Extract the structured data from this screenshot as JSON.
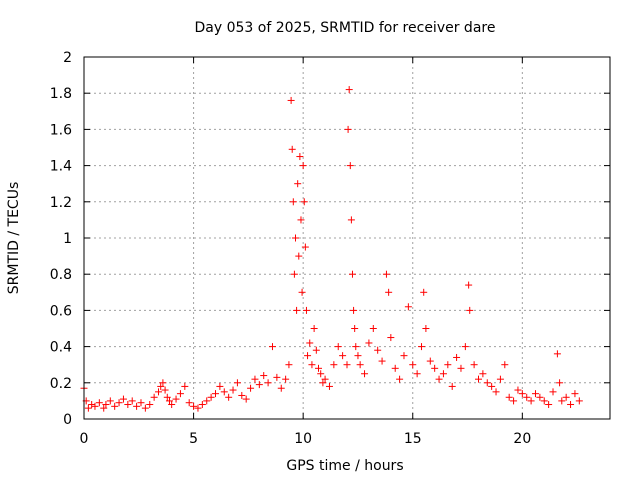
{
  "chart_data": {
    "type": "scatter",
    "title": "Day 053 of 2025, SRMTID for receiver dare",
    "xlabel": "GPS time / hours",
    "ylabel": "SRMTID / TECUs",
    "xlim": [
      0,
      24
    ],
    "ylim": [
      0,
      2
    ],
    "xticks": [
      0,
      5,
      10,
      15,
      20
    ],
    "xtick_labels": [
      "0",
      "5",
      "10",
      "15",
      "20"
    ],
    "yticks": [
      0,
      0.2,
      0.4,
      0.6,
      0.8,
      1,
      1.2,
      1.4,
      1.6,
      1.8,
      2
    ],
    "ytick_labels": [
      "0",
      "0.2",
      "0.4",
      "0.6",
      "0.8",
      "1",
      "1.2",
      "1.4",
      "1.6",
      "1.8",
      "2"
    ],
    "grid": true,
    "marker": "+",
    "color": "#ff0000",
    "series": [
      {
        "name": "SRMTID",
        "x": [
          0.0,
          0.1,
          0.2,
          0.35,
          0.5,
          0.7,
          0.9,
          1.0,
          1.2,
          1.4,
          1.6,
          1.8,
          2.0,
          2.2,
          2.4,
          2.6,
          2.8,
          3.0,
          3.2,
          3.4,
          3.5,
          3.6,
          3.7,
          3.8,
          3.9,
          4.0,
          4.2,
          4.4,
          4.6,
          4.8,
          5.0,
          5.2,
          5.4,
          5.6,
          5.8,
          6.0,
          6.2,
          6.4,
          6.6,
          6.8,
          7.0,
          7.2,
          7.4,
          7.6,
          7.8,
          8.0,
          8.2,
          8.4,
          8.6,
          8.8,
          9.0,
          9.2,
          9.35,
          9.45,
          9.5,
          9.55,
          9.6,
          9.65,
          9.7,
          9.75,
          9.8,
          9.85,
          9.9,
          9.95,
          10.0,
          10.05,
          10.1,
          10.15,
          10.2,
          10.3,
          10.4,
          10.5,
          10.6,
          10.7,
          10.8,
          10.9,
          11.0,
          11.2,
          11.4,
          11.6,
          11.8,
          12.0,
          12.05,
          12.1,
          12.15,
          12.2,
          12.25,
          12.3,
          12.35,
          12.4,
          12.5,
          12.6,
          12.8,
          13.0,
          13.2,
          13.4,
          13.6,
          13.8,
          13.9,
          14.0,
          14.2,
          14.4,
          14.6,
          14.8,
          15.0,
          15.2,
          15.4,
          15.5,
          15.6,
          15.8,
          16.0,
          16.2,
          16.4,
          16.6,
          16.8,
          17.0,
          17.2,
          17.4,
          17.55,
          17.6,
          17.8,
          18.0,
          18.2,
          18.4,
          18.6,
          18.8,
          19.0,
          19.2,
          19.4,
          19.6,
          19.8,
          20.0,
          20.2,
          20.4,
          20.6,
          20.8,
          21.0,
          21.2,
          21.4,
          21.6,
          21.7,
          21.8,
          22.0,
          22.2,
          22.4,
          22.6
        ],
        "y": [
          0.17,
          0.1,
          0.06,
          0.08,
          0.07,
          0.09,
          0.06,
          0.08,
          0.1,
          0.07,
          0.09,
          0.11,
          0.08,
          0.1,
          0.07,
          0.09,
          0.06,
          0.08,
          0.12,
          0.15,
          0.18,
          0.2,
          0.16,
          0.12,
          0.1,
          0.08,
          0.11,
          0.14,
          0.18,
          0.09,
          0.07,
          0.06,
          0.08,
          0.1,
          0.12,
          0.14,
          0.18,
          0.15,
          0.12,
          0.16,
          0.2,
          0.13,
          0.11,
          0.17,
          0.22,
          0.19,
          0.24,
          0.2,
          0.4,
          0.23,
          0.17,
          0.22,
          0.3,
          1.76,
          1.49,
          1.2,
          0.8,
          1.0,
          0.6,
          1.3,
          0.9,
          1.45,
          1.1,
          0.7,
          1.4,
          1.2,
          0.95,
          0.6,
          0.35,
          0.42,
          0.3,
          0.5,
          0.38,
          0.28,
          0.25,
          0.2,
          0.22,
          0.18,
          0.3,
          0.4,
          0.35,
          0.3,
          1.6,
          1.82,
          1.4,
          1.1,
          0.8,
          0.6,
          0.5,
          0.4,
          0.35,
          0.3,
          0.25,
          0.42,
          0.5,
          0.38,
          0.32,
          0.8,
          0.7,
          0.45,
          0.28,
          0.22,
          0.35,
          0.62,
          0.3,
          0.25,
          0.4,
          0.7,
          0.5,
          0.32,
          0.28,
          0.22,
          0.25,
          0.3,
          0.18,
          0.34,
          0.28,
          0.4,
          0.74,
          0.6,
          0.3,
          0.22,
          0.25,
          0.2,
          0.18,
          0.15,
          0.22,
          0.3,
          0.12,
          0.1,
          0.16,
          0.14,
          0.12,
          0.1,
          0.14,
          0.12,
          0.1,
          0.08,
          0.15,
          0.36,
          0.2,
          0.1,
          0.12,
          0.08,
          0.14,
          0.1
        ]
      }
    ]
  }
}
